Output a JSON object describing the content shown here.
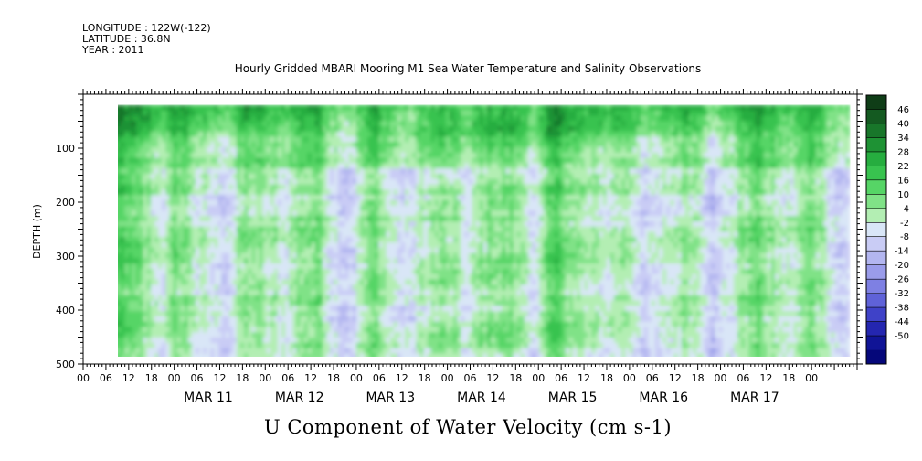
{
  "meta": {
    "longitude": "LONGITUDE : 122W(-122)",
    "latitude": "LATITUDE : 36.8N",
    "year": "YEAR : 2011"
  },
  "chart_data": {
    "type": "heatmap",
    "title": "Hourly Gridded MBARI Mooring M1 Sea Water Temperature and Salinity Observations",
    "subtitle": "U Component of Water Velocity (cm s-1)",
    "xlabel": "",
    "ylabel": "DEPTH (m)",
    "x_days": [
      "MAR 11",
      "MAR 12",
      "MAR 13",
      "MAR 14",
      "MAR 15",
      "MAR 16",
      "MAR 17"
    ],
    "x_hour_ticks": [
      "00",
      "06",
      "12",
      "18",
      "00",
      "06",
      "12",
      "18",
      "00",
      "06",
      "12",
      "18",
      "00",
      "06",
      "12",
      "18",
      "00",
      "06",
      "12",
      "18",
      "00",
      "06",
      "12",
      "18",
      "00",
      "06",
      "12",
      "18",
      "00",
      "06",
      "12",
      "18",
      "00"
    ],
    "x_range_hours_from_mar10_00": [
      0,
      204
    ],
    "data_x_range_hours": [
      5,
      202
    ],
    "y_ticks": [
      100,
      200,
      300,
      400,
      500
    ],
    "y_range": [
      0,
      500
    ],
    "y_inverted": true,
    "data_y_range": [
      20,
      490
    ],
    "colorbar": {
      "levels": [
        46,
        40,
        34,
        28,
        22,
        16,
        10,
        4,
        -2,
        -8,
        -14,
        -20,
        -26,
        -32,
        -38,
        -44,
        -50
      ],
      "colors": [
        "#0f3d17",
        "#145a21",
        "#18762a",
        "#1e9234",
        "#26ad3f",
        "#38c34f",
        "#56d566",
        "#80e287",
        "#b3eeb3",
        "#d9e6f7",
        "#c9ccf5",
        "#b3b6f0",
        "#9a9cea",
        "#7e80e3",
        "#5f62d8",
        "#3f42c8",
        "#2426b0",
        "#101496",
        "#05077a"
      ],
      "placement": "right"
    },
    "pattern": "near-surface positive (green) values, deeper layers alternating negative (blue/purple) and weak positive bands over time",
    "grid": false
  }
}
